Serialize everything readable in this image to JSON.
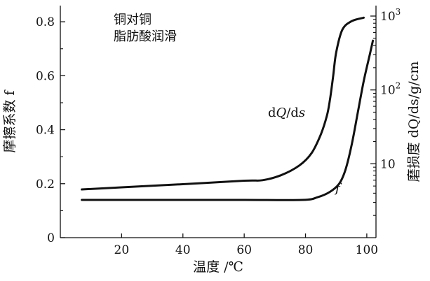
{
  "chart_data": {
    "type": "line",
    "xlabel": "温度 /℃",
    "ylabel_left": "摩擦系数 f",
    "ylabel_right": "磨损度 dQ/ds/g/cm",
    "annotations": [
      "铜对铜",
      "脂肪酸润滑"
    ],
    "x_ticks": [
      "20",
      "40",
      "60",
      "80",
      "100"
    ],
    "y_left_ticks": [
      "0",
      "0.2",
      "0.4",
      "0.6",
      "0.8"
    ],
    "y_right_ticks": [
      {
        "base": "10",
        "exp": ""
      },
      {
        "base": "10",
        "exp": "2"
      },
      {
        "base": "10",
        "exp": "3"
      }
    ],
    "xlim": [
      0,
      103
    ],
    "ylim_left": [
      0,
      0.86
    ],
    "ylim_right": [
      1,
      1386
    ],
    "y_right_scale": "log",
    "grid": false,
    "series": [
      {
        "name": "dQ/ds",
        "axis": "right",
        "x": [
          7,
          20,
          40,
          60,
          66,
          72,
          78,
          82,
          85,
          87,
          88,
          89,
          90,
          92,
          95,
          99
        ],
        "y": [
          4.5,
          4.8,
          5.3,
          5.9,
          6,
          7,
          9.5,
          14,
          25,
          45,
          75,
          150,
          320,
          650,
          850,
          950
        ]
      },
      {
        "name": "f",
        "axis": "left",
        "x": [
          7,
          20,
          40,
          60,
          79,
          84,
          88,
          91,
          93,
          95,
          97,
          99,
          101,
          102
        ],
        "y": [
          0.14,
          0.14,
          0.14,
          0.14,
          0.14,
          0.15,
          0.17,
          0.2,
          0.25,
          0.34,
          0.46,
          0.58,
          0.68,
          0.73
        ]
      }
    ],
    "series_label_text": {
      "dQ/ds": [
        "d",
        "Q",
        "/d",
        "s"
      ],
      "f": "f"
    }
  }
}
